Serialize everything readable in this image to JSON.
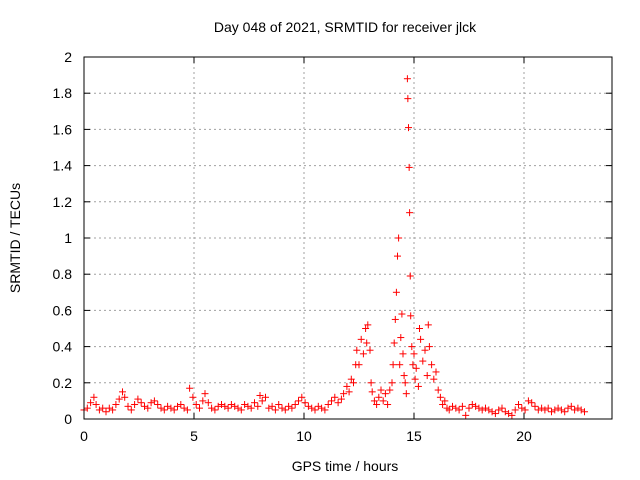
{
  "chart_data": {
    "type": "scatter",
    "title": "Day 048 of 2021, SRMTID for receiver jlck",
    "xlabel": "GPS time / hours",
    "ylabel": "SRMTID / TECUs",
    "xlim": [
      0,
      24
    ],
    "ylim": [
      0,
      2
    ],
    "grid": true,
    "marker": "+",
    "color": "#ff0000",
    "x_ticks": [
      0,
      5,
      10,
      15,
      20
    ],
    "x_tick_labels": [
      "0",
      "5",
      "10",
      "15",
      "20"
    ],
    "y_ticks": [
      0,
      0.2,
      0.4,
      0.6,
      0.8,
      1,
      1.2,
      1.4,
      1.6,
      1.8,
      2
    ],
    "y_tick_labels": [
      "0",
      "0.2",
      "0.4",
      "0.6",
      "0.8",
      "1",
      "1.2",
      "1.4",
      "1.6",
      "1.8",
      "2"
    ],
    "series": [
      {
        "name": "SRMTID",
        "points": [
          [
            0.0,
            0.05
          ],
          [
            0.15,
            0.06
          ],
          [
            0.3,
            0.09
          ],
          [
            0.45,
            0.12
          ],
          [
            0.55,
            0.08
          ],
          [
            0.7,
            0.05
          ],
          [
            0.85,
            0.06
          ],
          [
            1.0,
            0.04
          ],
          [
            1.15,
            0.06
          ],
          [
            1.3,
            0.05
          ],
          [
            1.45,
            0.08
          ],
          [
            1.6,
            0.11
          ],
          [
            1.75,
            0.15
          ],
          [
            1.85,
            0.12
          ],
          [
            2.0,
            0.07
          ],
          [
            2.15,
            0.05
          ],
          [
            2.3,
            0.08
          ],
          [
            2.45,
            0.11
          ],
          [
            2.6,
            0.09
          ],
          [
            2.75,
            0.07
          ],
          [
            2.9,
            0.06
          ],
          [
            3.05,
            0.09
          ],
          [
            3.2,
            0.1
          ],
          [
            3.35,
            0.08
          ],
          [
            3.5,
            0.06
          ],
          [
            3.65,
            0.05
          ],
          [
            3.8,
            0.07
          ],
          [
            3.95,
            0.06
          ],
          [
            4.1,
            0.05
          ],
          [
            4.25,
            0.07
          ],
          [
            4.4,
            0.08
          ],
          [
            4.55,
            0.06
          ],
          [
            4.7,
            0.05
          ],
          [
            4.8,
            0.17
          ],
          [
            4.95,
            0.12
          ],
          [
            5.1,
            0.08
          ],
          [
            5.25,
            0.06
          ],
          [
            5.4,
            0.1
          ],
          [
            5.5,
            0.14
          ],
          [
            5.65,
            0.09
          ],
          [
            5.8,
            0.06
          ],
          [
            5.95,
            0.05
          ],
          [
            6.1,
            0.07
          ],
          [
            6.25,
            0.08
          ],
          [
            6.4,
            0.07
          ],
          [
            6.55,
            0.06
          ],
          [
            6.7,
            0.08
          ],
          [
            6.85,
            0.07
          ],
          [
            7.0,
            0.06
          ],
          [
            7.15,
            0.05
          ],
          [
            7.3,
            0.08
          ],
          [
            7.45,
            0.07
          ],
          [
            7.6,
            0.06
          ],
          [
            7.75,
            0.09
          ],
          [
            7.9,
            0.07
          ],
          [
            8.0,
            0.13
          ],
          [
            8.1,
            0.1
          ],
          [
            8.25,
            0.12
          ],
          [
            8.4,
            0.06
          ],
          [
            8.55,
            0.07
          ],
          [
            8.7,
            0.05
          ],
          [
            8.85,
            0.08
          ],
          [
            9.0,
            0.06
          ],
          [
            9.15,
            0.05
          ],
          [
            9.3,
            0.07
          ],
          [
            9.45,
            0.06
          ],
          [
            9.6,
            0.08
          ],
          [
            9.75,
            0.1
          ],
          [
            9.9,
            0.12
          ],
          [
            10.05,
            0.09
          ],
          [
            10.2,
            0.07
          ],
          [
            10.35,
            0.06
          ],
          [
            10.5,
            0.05
          ],
          [
            10.65,
            0.07
          ],
          [
            10.8,
            0.06
          ],
          [
            10.95,
            0.05
          ],
          [
            11.1,
            0.08
          ],
          [
            11.25,
            0.1
          ],
          [
            11.4,
            0.12
          ],
          [
            11.55,
            0.09
          ],
          [
            11.7,
            0.11
          ],
          [
            11.8,
            0.14
          ],
          [
            11.95,
            0.18
          ],
          [
            12.05,
            0.15
          ],
          [
            12.15,
            0.22
          ],
          [
            12.25,
            0.2
          ],
          [
            12.35,
            0.3
          ],
          [
            12.4,
            0.38
          ],
          [
            12.5,
            0.3
          ],
          [
            12.6,
            0.44
          ],
          [
            12.7,
            0.36
          ],
          [
            12.8,
            0.5
          ],
          [
            12.85,
            0.42
          ],
          [
            12.9,
            0.52
          ],
          [
            13.0,
            0.38
          ],
          [
            13.05,
            0.2
          ],
          [
            13.1,
            0.15
          ],
          [
            13.2,
            0.1
          ],
          [
            13.3,
            0.08
          ],
          [
            13.4,
            0.12
          ],
          [
            13.5,
            0.16
          ],
          [
            13.6,
            0.1
          ],
          [
            13.7,
            0.14
          ],
          [
            13.8,
            0.08
          ],
          [
            13.9,
            0.16
          ],
          [
            14.0,
            0.2
          ],
          [
            14.05,
            0.3
          ],
          [
            14.1,
            0.42
          ],
          [
            14.15,
            0.55
          ],
          [
            14.2,
            0.7
          ],
          [
            14.25,
            0.9
          ],
          [
            14.3,
            1.0
          ],
          [
            14.35,
            0.3
          ],
          [
            14.4,
            0.45
          ],
          [
            14.45,
            0.58
          ],
          [
            14.5,
            0.36
          ],
          [
            14.55,
            0.24
          ],
          [
            14.6,
            0.2
          ],
          [
            14.65,
            0.14
          ],
          [
            14.7,
            1.88
          ],
          [
            14.72,
            1.77
          ],
          [
            14.75,
            1.61
          ],
          [
            14.78,
            1.39
          ],
          [
            14.8,
            1.14
          ],
          [
            14.83,
            0.79
          ],
          [
            14.85,
            0.57
          ],
          [
            14.9,
            0.4
          ],
          [
            14.95,
            0.3
          ],
          [
            15.0,
            0.36
          ],
          [
            15.05,
            0.22
          ],
          [
            15.1,
            0.28
          ],
          [
            15.2,
            0.18
          ],
          [
            15.25,
            0.5
          ],
          [
            15.3,
            0.44
          ],
          [
            15.4,
            0.32
          ],
          [
            15.5,
            0.38
          ],
          [
            15.6,
            0.24
          ],
          [
            15.65,
            0.52
          ],
          [
            15.7,
            0.4
          ],
          [
            15.8,
            0.3
          ],
          [
            15.9,
            0.22
          ],
          [
            16.0,
            0.26
          ],
          [
            16.1,
            0.16
          ],
          [
            16.2,
            0.12
          ],
          [
            16.3,
            0.08
          ],
          [
            16.4,
            0.1
          ],
          [
            16.5,
            0.06
          ],
          [
            16.6,
            0.05
          ],
          [
            16.75,
            0.07
          ],
          [
            16.9,
            0.06
          ],
          [
            17.05,
            0.05
          ],
          [
            17.2,
            0.07
          ],
          [
            17.35,
            0.02
          ],
          [
            17.5,
            0.06
          ],
          [
            17.65,
            0.08
          ],
          [
            17.8,
            0.07
          ],
          [
            17.95,
            0.06
          ],
          [
            18.1,
            0.05
          ],
          [
            18.25,
            0.06
          ],
          [
            18.4,
            0.05
          ],
          [
            18.55,
            0.04
          ],
          [
            18.7,
            0.03
          ],
          [
            18.85,
            0.05
          ],
          [
            19.0,
            0.06
          ],
          [
            19.15,
            0.04
          ],
          [
            19.3,
            0.03
          ],
          [
            19.45,
            0.02
          ],
          [
            19.6,
            0.05
          ],
          [
            19.75,
            0.08
          ],
          [
            19.9,
            0.06
          ],
          [
            20.05,
            0.05
          ],
          [
            20.2,
            0.1
          ],
          [
            20.35,
            0.09
          ],
          [
            20.5,
            0.07
          ],
          [
            20.65,
            0.05
          ],
          [
            20.8,
            0.06
          ],
          [
            20.95,
            0.05
          ],
          [
            21.1,
            0.06
          ],
          [
            21.25,
            0.04
          ],
          [
            21.4,
            0.05
          ],
          [
            21.55,
            0.06
          ],
          [
            21.7,
            0.05
          ],
          [
            21.85,
            0.04
          ],
          [
            22.0,
            0.06
          ],
          [
            22.15,
            0.07
          ],
          [
            22.3,
            0.05
          ],
          [
            22.45,
            0.06
          ],
          [
            22.6,
            0.05
          ],
          [
            22.75,
            0.04
          ]
        ]
      }
    ]
  }
}
